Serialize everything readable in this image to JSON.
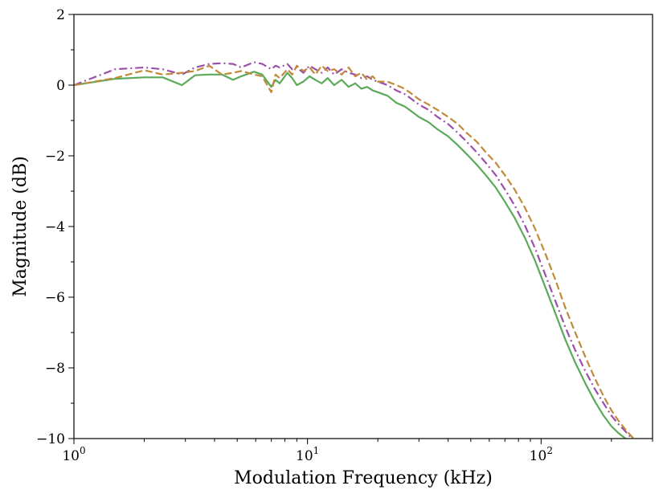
{
  "chart_data": {
    "type": "line",
    "title": "",
    "xlabel": "Modulation Frequency (kHz)",
    "ylabel": "Magnitude (dB)",
    "xscale": "log",
    "xlim": [
      1,
      300
    ],
    "ylim": [
      -10,
      2
    ],
    "yticks": [
      2,
      0,
      -2,
      -4,
      -6,
      -8,
      -10
    ],
    "ytick_labels": [
      "2",
      "0",
      "−2",
      "−4",
      "−6",
      "−8",
      "−10"
    ],
    "xticks": [
      1,
      10,
      100
    ],
    "xtick_labels": [
      {
        "base": "10",
        "exp": "0"
      },
      {
        "base": "10",
        "exp": "1"
      },
      {
        "base": "10",
        "exp": "2"
      }
    ],
    "grid": false,
    "legend": "none",
    "series": [
      {
        "name": "green-solid",
        "color": "#5aaa5a",
        "dash": "solid",
        "x": [
          1,
          1.5,
          2,
          2.4,
          2.9,
          3.3,
          3.8,
          4.3,
          4.8,
          5.2,
          5.9,
          6.4,
          7.0,
          7.3,
          7.6,
          8.2,
          8.6,
          9.0,
          9.6,
          10.2,
          10.8,
          11.5,
          12.2,
          13.0,
          14.0,
          15.0,
          16.0,
          17.0,
          18.0,
          19.0,
          20.0,
          22.0,
          24.0,
          26.0,
          28.0,
          30.0,
          33.0,
          36.0,
          40.0,
          44.0,
          48.0,
          53.0,
          58.0,
          64.0,
          70.0,
          77.0,
          85.0,
          94.0,
          104.0,
          115.0,
          127.0,
          140.0,
          155.0,
          170.0,
          185.0,
          200.0,
          215.0,
          230.0,
          245.0,
          260.0
        ],
        "y": [
          0.0,
          0.18,
          0.22,
          0.22,
          0.0,
          0.28,
          0.3,
          0.3,
          0.15,
          0.25,
          0.38,
          0.3,
          -0.05,
          0.15,
          0.05,
          0.35,
          0.2,
          0.0,
          0.1,
          0.25,
          0.15,
          0.05,
          0.2,
          0.0,
          0.15,
          -0.05,
          0.05,
          -0.1,
          -0.05,
          -0.15,
          -0.2,
          -0.3,
          -0.5,
          -0.6,
          -0.75,
          -0.9,
          -1.05,
          -1.25,
          -1.45,
          -1.7,
          -1.95,
          -2.25,
          -2.55,
          -2.9,
          -3.3,
          -3.75,
          -4.3,
          -4.95,
          -5.7,
          -6.45,
          -7.2,
          -7.85,
          -8.45,
          -8.95,
          -9.35,
          -9.65,
          -9.85,
          -10.0,
          -10.1,
          -10.2
        ]
      },
      {
        "name": "purple-dashdot",
        "color": "#9b4fab",
        "dash": "dashdot",
        "x": [
          1,
          1.5,
          2,
          2.4,
          2.9,
          3.3,
          3.8,
          4.3,
          4.8,
          5.2,
          5.9,
          6.4,
          7.0,
          7.3,
          7.6,
          8.2,
          8.6,
          9.0,
          9.6,
          10.2,
          10.8,
          11.5,
          12.2,
          13.0,
          14.0,
          15.0,
          16.0,
          17.0,
          18.0,
          19.0,
          20.0,
          22.0,
          24.0,
          26.0,
          28.0,
          30.0,
          33.0,
          36.0,
          40.0,
          44.0,
          48.0,
          53.0,
          58.0,
          64.0,
          70.0,
          77.0,
          85.0,
          94.0,
          104.0,
          115.0,
          127.0,
          140.0,
          155.0,
          170.0,
          185.0,
          200.0,
          215.0,
          230.0,
          245.0,
          260.0
        ],
        "y": [
          0.0,
          0.45,
          0.5,
          0.45,
          0.3,
          0.5,
          0.6,
          0.62,
          0.6,
          0.5,
          0.65,
          0.6,
          0.45,
          0.55,
          0.5,
          0.6,
          0.45,
          0.5,
          0.35,
          0.55,
          0.45,
          0.35,
          0.5,
          0.3,
          0.45,
          0.35,
          0.3,
          0.2,
          0.25,
          0.15,
          0.1,
          0.0,
          -0.15,
          -0.25,
          -0.4,
          -0.55,
          -0.7,
          -0.9,
          -1.1,
          -1.35,
          -1.6,
          -1.9,
          -2.2,
          -2.55,
          -2.95,
          -3.4,
          -3.95,
          -4.6,
          -5.35,
          -6.1,
          -6.85,
          -7.5,
          -8.1,
          -8.6,
          -9.0,
          -9.35,
          -9.6,
          -9.8,
          -10.0,
          -10.15
        ]
      },
      {
        "name": "orange-dashed",
        "color": "#c08a3a",
        "dash": "dashed",
        "x": [
          1,
          1.5,
          2,
          2.4,
          2.9,
          3.3,
          3.8,
          4.3,
          4.8,
          5.2,
          5.9,
          6.4,
          7.0,
          7.3,
          7.6,
          8.2,
          8.6,
          9.0,
          9.6,
          10.2,
          10.8,
          11.5,
          12.2,
          13.0,
          14.0,
          15.0,
          16.0,
          17.0,
          18.0,
          19.0,
          20.0,
          22.0,
          24.0,
          26.0,
          28.0,
          30.0,
          33.0,
          36.0,
          40.0,
          44.0,
          48.0,
          53.0,
          58.0,
          64.0,
          70.0,
          77.0,
          85.0,
          94.0,
          104.0,
          115.0,
          127.0,
          140.0,
          155.0,
          170.0,
          185.0,
          200.0,
          215.0,
          230.0,
          245.0,
          260.0,
          275.0
        ],
        "y": [
          0.0,
          0.2,
          0.42,
          0.3,
          0.35,
          0.4,
          0.55,
          0.3,
          0.35,
          0.4,
          0.3,
          0.25,
          -0.2,
          0.3,
          0.2,
          0.45,
          0.3,
          0.55,
          0.4,
          0.5,
          0.3,
          0.55,
          0.4,
          0.45,
          0.3,
          0.5,
          0.25,
          0.35,
          0.15,
          0.25,
          0.1,
          0.1,
          0.0,
          -0.1,
          -0.25,
          -0.4,
          -0.55,
          -0.7,
          -0.9,
          -1.1,
          -1.35,
          -1.6,
          -1.9,
          -2.2,
          -2.55,
          -2.95,
          -3.45,
          -4.05,
          -4.75,
          -5.5,
          -6.3,
          -7.0,
          -7.7,
          -8.3,
          -8.8,
          -9.2,
          -9.5,
          -9.75,
          -9.95,
          -10.1,
          -10.2
        ]
      }
    ]
  }
}
